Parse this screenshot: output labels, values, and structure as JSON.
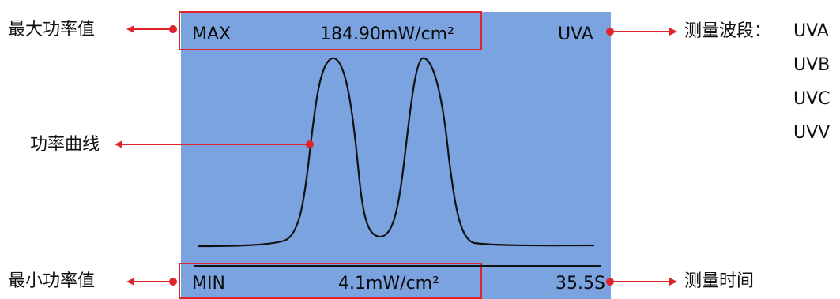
{
  "screen": {
    "max_label": "MAX",
    "max_value": "184.90mW/cm²",
    "band_value": "UVA",
    "min_label": "MIN",
    "min_value": "4.1mW/cm²",
    "time_value": "35.5S"
  },
  "annotations": {
    "max_power": "最大功率值",
    "power_curve": "功率曲线",
    "min_power": "最小功率值",
    "band_prefix": "测量波段：",
    "bands": [
      "UVA",
      "UVB",
      "UVC",
      "UVV"
    ],
    "measure_time": "测量时间"
  },
  "colors": {
    "screen_bg": "#7ba3e0",
    "accent": "#e0242b",
    "curve": "#111111"
  }
}
